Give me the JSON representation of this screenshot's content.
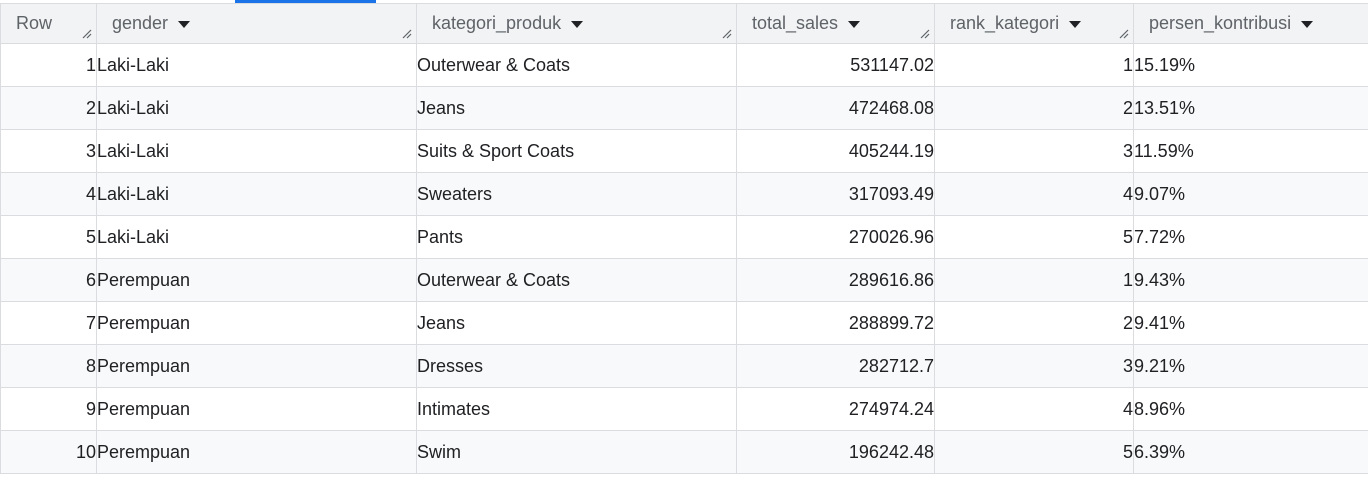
{
  "table": {
    "columns": [
      {
        "label": "Row",
        "sortable": false
      },
      {
        "label": "gender",
        "sortable": true
      },
      {
        "label": "kategori_produk",
        "sortable": true
      },
      {
        "label": "total_sales",
        "sortable": true
      },
      {
        "label": "rank_kategori",
        "sortable": true
      },
      {
        "label": "persen_kontribusi",
        "sortable": true
      }
    ],
    "rows": [
      [
        "1",
        "Laki-Laki",
        "Outerwear & Coats",
        "531147.02",
        "1",
        "15.19%"
      ],
      [
        "2",
        "Laki-Laki",
        "Jeans",
        "472468.08",
        "2",
        "13.51%"
      ],
      [
        "3",
        "Laki-Laki",
        "Suits & Sport Coats",
        "405244.19",
        "3",
        "11.59%"
      ],
      [
        "4",
        "Laki-Laki",
        "Sweaters",
        "317093.49",
        "4",
        "9.07%"
      ],
      [
        "5",
        "Laki-Laki",
        "Pants",
        "270026.96",
        "5",
        "7.72%"
      ],
      [
        "6",
        "Perempuan",
        "Outerwear & Coats",
        "289616.86",
        "1",
        "9.43%"
      ],
      [
        "7",
        "Perempuan",
        "Jeans",
        "288899.72",
        "2",
        "9.41%"
      ],
      [
        "8",
        "Perempuan",
        "Dresses",
        "282712.7",
        "3",
        "9.21%"
      ],
      [
        "9",
        "Perempuan",
        "Intimates",
        "274974.24",
        "4",
        "8.96%"
      ],
      [
        "10",
        "Perempuan",
        "Swim",
        "196242.48",
        "5",
        "6.39%"
      ]
    ]
  },
  "colors": {
    "accent": "#1a73e8",
    "header_bg": "#f1f3f4",
    "stripe_bg": "#f8f9fa",
    "border": "#dadce0"
  },
  "icons": {
    "sort": "sort-arrow-icon",
    "resize": "column-resize-icon"
  }
}
